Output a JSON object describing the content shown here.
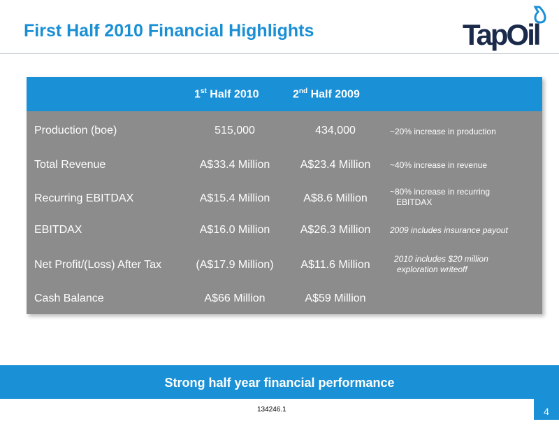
{
  "slide": {
    "title": "First Half 2010 Financial Highlights",
    "brand": "TapOil",
    "accent_color": "#1a90d6",
    "table_color": "#8c8c8c"
  },
  "table": {
    "header": {
      "col1_prefix": "1",
      "col1_sup": "st",
      "col1_rest": " Half 2010",
      "col2_prefix": "2",
      "col2_sup": "nd",
      "col2_rest": " Half 2009"
    },
    "rows": [
      {
        "label": "Production (boe)",
        "h1_2010": "515,000",
        "h2_2009": "434,000",
        "note": "~20% increase in production"
      },
      {
        "label": "Total Revenue",
        "h1_2010": "A$33.4 Million",
        "h2_2009": "A$23.4 Million",
        "note": "~40% increase in revenue"
      },
      {
        "label": "Recurring EBITDAX",
        "h1_2010": "A$15.4 Million",
        "h2_2009": "A$8.6 Million",
        "note_line1": "~80% increase in recurring",
        "note_line2": "EBITDAX"
      },
      {
        "label": "EBITDAX",
        "h1_2010": "A$16.0 Million",
        "h2_2009": "A$26.3 Million",
        "note": "2009 includes insurance payout"
      },
      {
        "label": "Net Profit/(Loss) After Tax",
        "h1_2010": "(A$17.9 Million)",
        "h2_2009": "A$11.6 Million",
        "note_line1": "2010 includes $20 million",
        "note_line2": "exploration writeoff"
      },
      {
        "label": "Cash Balance",
        "h1_2010": "A$66 Million",
        "h2_2009": "A$59 Million",
        "note": ""
      }
    ]
  },
  "banner": {
    "text": "Strong half year financial performance"
  },
  "footer": {
    "doc_id": "134246.1",
    "page_number": "4"
  }
}
